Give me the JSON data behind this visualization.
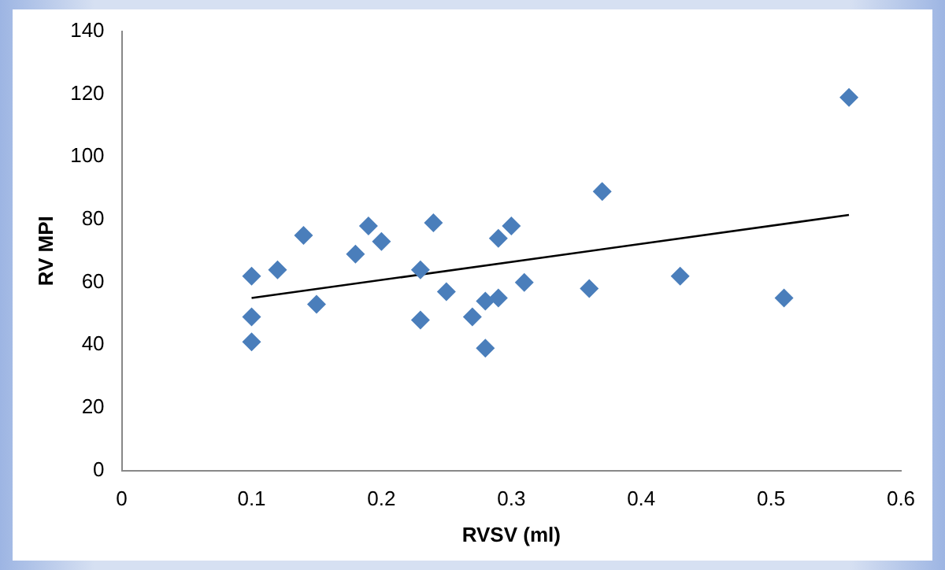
{
  "chart_data": {
    "type": "scatter",
    "xlabel": "RVSV (ml)",
    "ylabel": "RV MPI",
    "marker": "diamond",
    "grid": false,
    "legend": false,
    "xlim": [
      0,
      0.6
    ],
    "xticks": [
      0,
      0.1,
      0.2,
      0.3,
      0.4,
      0.5,
      0.6
    ],
    "ylim": [
      0,
      140
    ],
    "yticks": [
      0,
      20,
      40,
      60,
      80,
      100,
      120,
      140
    ],
    "series": [
      {
        "color": "#4a7ebb",
        "x": [
          0.1,
          0.1,
          0.1,
          0.12,
          0.14,
          0.15,
          0.18,
          0.19,
          0.2,
          0.23,
          0.23,
          0.24,
          0.25,
          0.27,
          0.28,
          0.28,
          0.29,
          0.29,
          0.3,
          0.31,
          0.36,
          0.37,
          0.43,
          0.51,
          0.56
        ],
        "values": [
          62,
          49,
          41,
          64,
          75,
          53,
          69,
          78,
          73,
          64,
          48,
          79,
          57,
          49,
          54,
          39,
          74,
          55,
          78,
          60,
          58,
          89,
          62,
          55,
          119
        ]
      },
      {
        "type": "line",
        "color": "#000000",
        "marker": "none",
        "x": [
          0.1,
          0.56
        ],
        "values": [
          55,
          81.5
        ]
      }
    ]
  }
}
